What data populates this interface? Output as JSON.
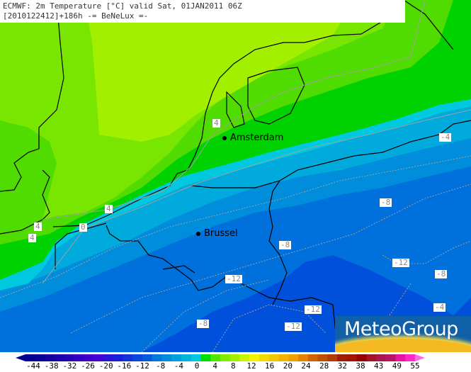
{
  "header": {
    "line1": "ECMWF: 2m Temperature [°C] valid Sat, 01JAN2011 06Z",
    "line2": "[2010122412]+186h -= BeNeLux =-"
  },
  "cities": [
    {
      "name": "Amsterdam"
    },
    {
      "name": "Brussel"
    }
  ],
  "contour_labels": [
    "4",
    "-4",
    "4",
    "4",
    "0",
    "4",
    "-8",
    "-8",
    "-12",
    "-8",
    "-12",
    "-12",
    "-12",
    "-8",
    "-4"
  ],
  "field_colors": {
    "light_yellow_green": "#a2f000",
    "yellow_green": "#78e600",
    "green": "#50dc00",
    "bright_green": "#00d200",
    "cyan": "#00c8de",
    "light_blue": "#00aadc",
    "mid_blue": "#008edc",
    "blue": "#0070dc",
    "deep_blue": "#0056dc",
    "darker_blue": "#0040dc"
  },
  "colorbar": {
    "labels": [
      "-44",
      "-38",
      "-32",
      "-26",
      "-20",
      "-16",
      "-12",
      "-8",
      "-4",
      "0",
      "4",
      "8",
      "12",
      "16",
      "20",
      "24",
      "28",
      "32",
      "38",
      "43",
      "49",
      "55"
    ],
    "colors": [
      "#000090",
      "#0a0096",
      "#14009c",
      "#1e00a8",
      "#2800b4",
      "#3200c0",
      "#3c00c8",
      "#4600d2",
      "#2814d2",
      "#1e1ed8",
      "#1432d8",
      "#0a46dc",
      "#005adc",
      "#0078dc",
      "#008cdc",
      "#00a0dc",
      "#00b4dc",
      "#00c8e0",
      "#00dc00",
      "#50e600",
      "#82eb00",
      "#a0f000",
      "#c8f500",
      "#f0f500",
      "#f0dc00",
      "#f0c800",
      "#f0b400",
      "#f0a000",
      "#e68200",
      "#d26400",
      "#be5000",
      "#b43c00",
      "#a01e00",
      "#a01400",
      "#960000",
      "#a01428",
      "#aa1450",
      "#b41464",
      "#e614a0",
      "#ff28c8"
    ],
    "low_arrow_color": "#000090",
    "high_arrow_color": "#ff64e6"
  },
  "logo": {
    "text": "MeteoGroup"
  }
}
